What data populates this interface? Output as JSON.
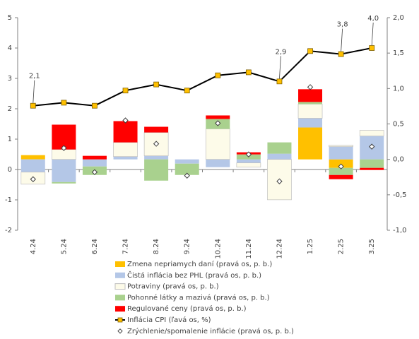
{
  "chart_data": {
    "type": "bar",
    "categories": [
      "4.24",
      "5.24",
      "6.24",
      "7.24",
      "8.24",
      "9.24",
      "10.24",
      "11.24",
      "12.24",
      "1.25",
      "2.25",
      "3.25"
    ],
    "ylim": [
      -2,
      5
    ],
    "yticks": [
      -2,
      -1,
      0,
      1,
      2,
      3,
      4,
      5
    ],
    "y2lim": [
      -1,
      2
    ],
    "y2ticks": [
      {
        "value": -1,
        "label": "-1,0"
      },
      {
        "value": -0.5,
        "label": "-0,5"
      },
      {
        "value": 0,
        "label": "0,0"
      },
      {
        "value": 0.5,
        "label": "0,5"
      },
      {
        "value": 1,
        "label": "1,0"
      },
      {
        "value": 1.5,
        "label": "1,5"
      },
      {
        "value": 2,
        "label": "2,0"
      }
    ],
    "grid": false,
    "legend": "bottom",
    "series": [
      {
        "name": "Zmena nepriamych daní (pravá os, p. b.)",
        "type": "bar",
        "axis": "y2",
        "color": "#ffc000",
        "values": [
          0.06,
          0,
          0,
          0,
          0,
          0,
          0,
          0,
          0,
          0.45,
          -0.12,
          0
        ]
      },
      {
        "name": "Čistá inflácia bez PHL (pravá os, p. b.)",
        "type": "bar",
        "axis": "y2",
        "color": "#b4c7e7",
        "values": [
          -0.18,
          -0.32,
          -0.1,
          0.04,
          0.05,
          -0.06,
          -0.11,
          -0.05,
          0.08,
          0.13,
          0.18,
          0.33
        ]
      },
      {
        "name": "Potraviny (pravá os, p. b.)",
        "type": "bar",
        "axis": "y2",
        "color": "#fdfbe9",
        "values": [
          -0.17,
          0.14,
          0,
          0.2,
          0.33,
          0,
          0.43,
          -0.06,
          -0.57,
          0.2,
          0.02,
          0.08
        ]
      },
      {
        "name": "Pohonné látky a mazivá (pravá os, p. b.)",
        "type": "bar",
        "axis": "y2",
        "color": "#a9d18e",
        "values": [
          0,
          -0.02,
          -0.12,
          0,
          -0.3,
          -0.16,
          0.14,
          0.07,
          0.16,
          0.03,
          -0.1,
          -0.12
        ]
      },
      {
        "name": "Regulované ceny (pravá os, p. b.)",
        "type": "bar",
        "axis": "y2",
        "color": "#ff0000",
        "values": [
          0,
          0.35,
          0.05,
          0.3,
          0.08,
          0,
          0.05,
          0.03,
          0,
          0.18,
          -0.06,
          -0.03
        ]
      },
      {
        "name": "Inflácia CPI (ľavá os, %)",
        "type": "line",
        "axis": "y",
        "color": "#000000",
        "values": [
          2.1,
          2.2,
          2.1,
          2.6,
          2.8,
          2.6,
          3.1,
          3.2,
          2.9,
          3.9,
          3.8,
          4.0
        ],
        "value_labels": [
          "2,1",
          null,
          null,
          null,
          null,
          null,
          null,
          null,
          "2,9",
          null,
          "3,8",
          "4,0"
        ]
      },
      {
        "name": "Zrýchlenie/spomalenie inflácie (pravá os, p. b.)",
        "type": "scatter",
        "axis": "y2",
        "color": "#404040",
        "values": [
          -0.28,
          0.16,
          -0.18,
          0.55,
          0.22,
          -0.23,
          0.51,
          0.07,
          -0.31,
          1.02,
          -0.1,
          0.18
        ]
      }
    ]
  }
}
